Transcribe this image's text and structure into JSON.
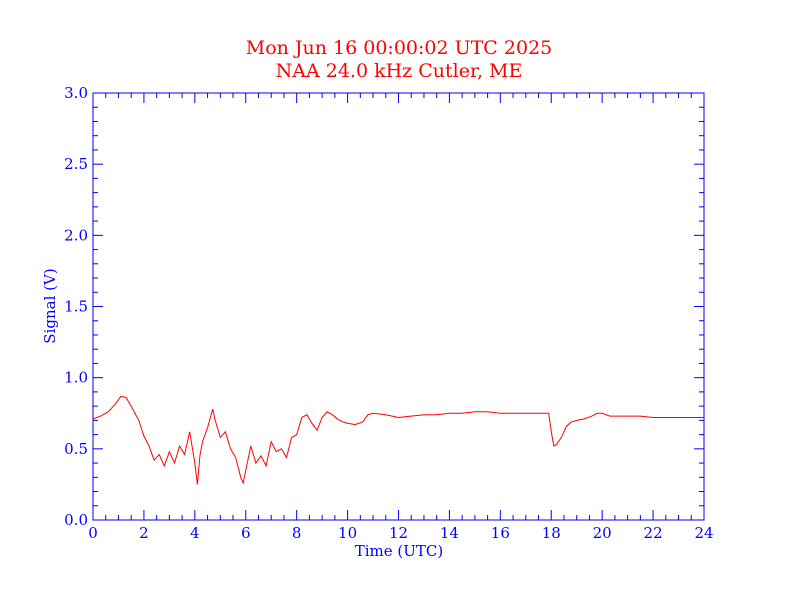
{
  "chart_data": {
    "type": "line",
    "title": "Mon Jun 16 00:00:02 UTC 2025",
    "subtitle": "NAA 24.0 kHz Cutler, ME",
    "xlabel": "Time (UTC)",
    "ylabel": "Signal (V)",
    "xlim": [
      0,
      24
    ],
    "ylim": [
      0,
      3.0
    ],
    "x_ticks": [
      "0",
      "2",
      "4",
      "6",
      "8",
      "10",
      "12",
      "14",
      "16",
      "18",
      "20",
      "22",
      "24"
    ],
    "y_ticks": [
      "0.0",
      "0.5",
      "1.0",
      "1.5",
      "2.0",
      "2.5",
      "3.0"
    ],
    "grid": false,
    "colors": {
      "line": "#ff0000",
      "title": "#ff0000",
      "axes": "#0000ff"
    },
    "series": [
      {
        "x": [
          0.0,
          0.3,
          0.6,
          0.9,
          1.1,
          1.3,
          1.5,
          1.8,
          2.0,
          2.2,
          2.4,
          2.6,
          2.8,
          3.0,
          3.2,
          3.4,
          3.6,
          3.8,
          4.0,
          4.1,
          4.2,
          4.3,
          4.5,
          4.7,
          4.8,
          5.0,
          5.2,
          5.4,
          5.6,
          5.8,
          5.9,
          6.0,
          6.2,
          6.4,
          6.6,
          6.8,
          7.0,
          7.2,
          7.4,
          7.6,
          7.8,
          8.0,
          8.2,
          8.4,
          8.6,
          8.8,
          9.0,
          9.2,
          9.4,
          9.6,
          9.8,
          10.0,
          10.3,
          10.6,
          10.8,
          11.0,
          11.5,
          12.0,
          12.5,
          13.0,
          13.5,
          14.0,
          14.5,
          15.0,
          15.5,
          16.0,
          16.5,
          17.0,
          17.5,
          17.9,
          18.0,
          18.1,
          18.2,
          18.4,
          18.6,
          18.8,
          19.0,
          19.3,
          19.6,
          19.8,
          20.0,
          20.3,
          20.6,
          21.0,
          21.5,
          22.0,
          22.5,
          23.0,
          23.5,
          24.0
        ],
        "y": [
          0.71,
          0.73,
          0.76,
          0.82,
          0.87,
          0.86,
          0.8,
          0.7,
          0.59,
          0.52,
          0.42,
          0.46,
          0.38,
          0.48,
          0.4,
          0.52,
          0.46,
          0.62,
          0.4,
          0.25,
          0.45,
          0.55,
          0.65,
          0.78,
          0.7,
          0.58,
          0.62,
          0.5,
          0.44,
          0.3,
          0.26,
          0.35,
          0.52,
          0.4,
          0.45,
          0.38,
          0.55,
          0.48,
          0.5,
          0.44,
          0.58,
          0.6,
          0.72,
          0.74,
          0.68,
          0.63,
          0.72,
          0.76,
          0.74,
          0.71,
          0.69,
          0.68,
          0.67,
          0.69,
          0.74,
          0.75,
          0.74,
          0.72,
          0.73,
          0.74,
          0.74,
          0.75,
          0.75,
          0.76,
          0.76,
          0.75,
          0.75,
          0.75,
          0.75,
          0.75,
          0.62,
          0.52,
          0.53,
          0.58,
          0.66,
          0.69,
          0.7,
          0.71,
          0.73,
          0.75,
          0.75,
          0.73,
          0.73,
          0.73,
          0.73,
          0.72,
          0.72,
          0.72,
          0.72,
          0.72
        ]
      }
    ]
  }
}
